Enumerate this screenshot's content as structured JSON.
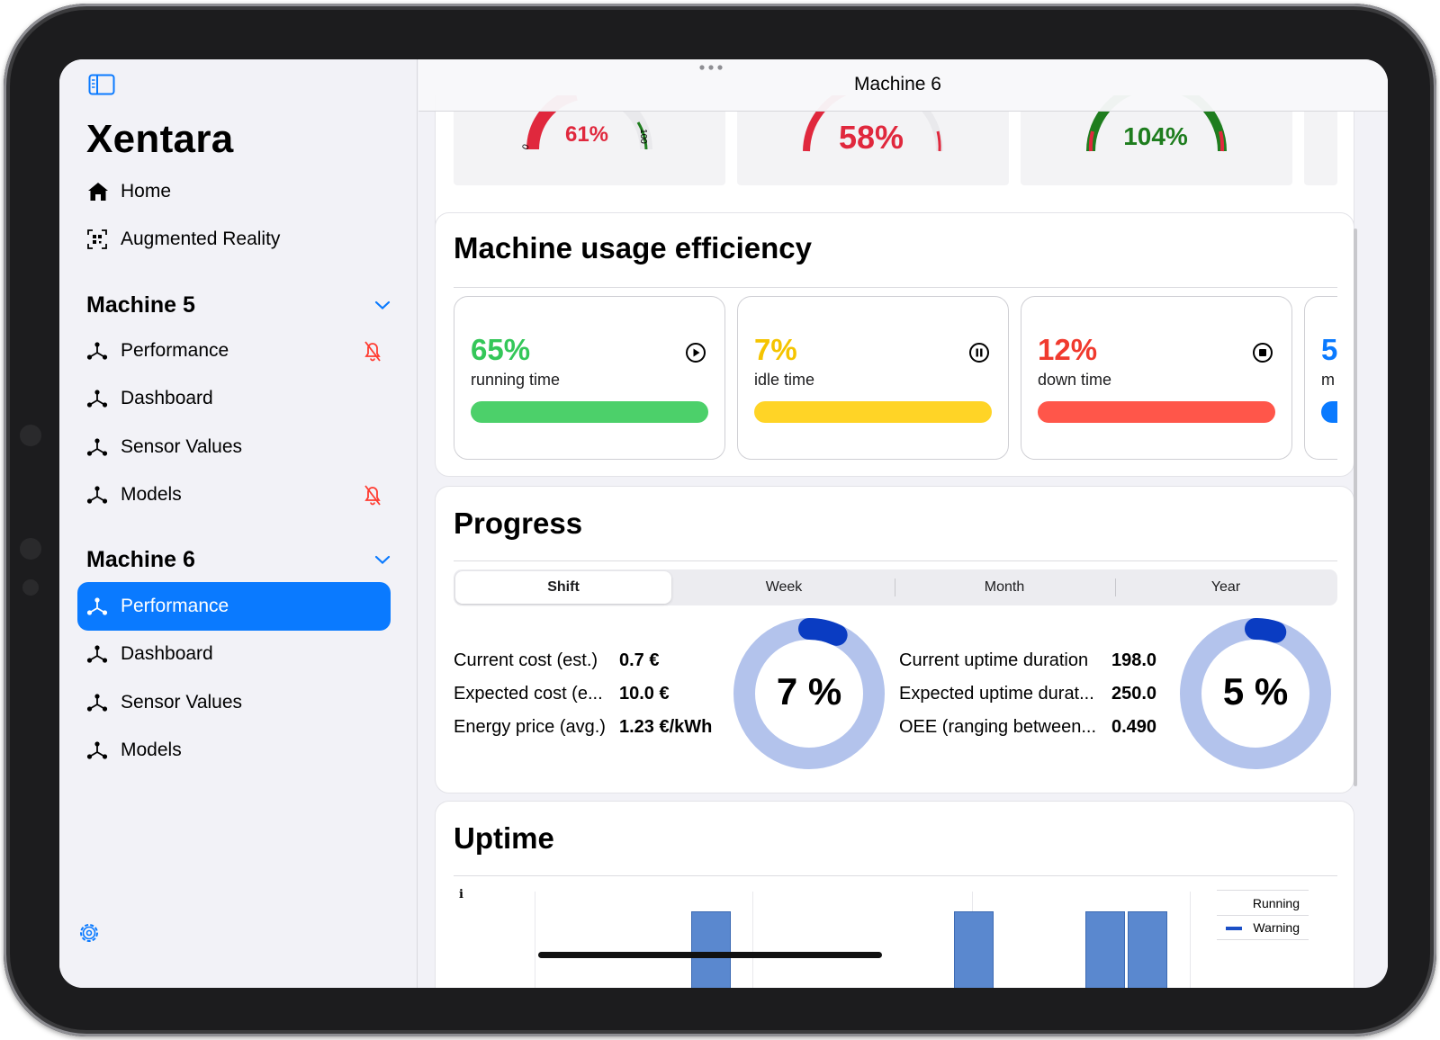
{
  "app": {
    "name": "Xentara",
    "window_title": "Machine 6"
  },
  "sidebar": {
    "top_items": [
      {
        "label": "Home",
        "icon": "house-icon"
      },
      {
        "label": "Augmented Reality",
        "icon": "qr-scan-icon"
      }
    ],
    "sections": [
      {
        "title": "Machine 5",
        "items": [
          {
            "label": "Performance",
            "icon": "network-icon",
            "badge": "bell-slash-icon"
          },
          {
            "label": "Dashboard",
            "icon": "network-icon"
          },
          {
            "label": "Sensor Values",
            "icon": "network-icon"
          },
          {
            "label": "Models",
            "icon": "network-icon",
            "badge": "bell-slash-icon"
          }
        ]
      },
      {
        "title": "Machine 6",
        "items": [
          {
            "label": "Performance",
            "icon": "network-icon",
            "selected": true
          },
          {
            "label": "Dashboard",
            "icon": "network-icon"
          },
          {
            "label": "Sensor Values",
            "icon": "network-icon"
          },
          {
            "label": "Models",
            "icon": "network-icon"
          }
        ]
      }
    ]
  },
  "gauges": [
    {
      "value_label": "61%",
      "value": 61,
      "color": "#e0283d",
      "tick_min": "0",
      "tick_max": "100"
    },
    {
      "value_label": "58%",
      "value": 58,
      "color": "#e0283d"
    },
    {
      "value_label": "104%",
      "value": 104,
      "color": "#1e7d1e"
    }
  ],
  "efficiency": {
    "title": "Machine usage efficiency",
    "tiles": [
      {
        "percent": "65%",
        "label": "running time",
        "color": "#34c759",
        "bar_color": "#4cd06a",
        "icon": "play-circle-icon"
      },
      {
        "percent": "7%",
        "label": "idle time",
        "color": "#f5c400",
        "bar_color": "#ffd426",
        "icon": "pause-circle-icon"
      },
      {
        "percent": "12%",
        "label": "down time",
        "color": "#f03a2e",
        "bar_color": "#ff564a",
        "icon": "stop-circle-icon"
      },
      {
        "percent": "5",
        "label": "m",
        "color": "#0a7aff",
        "bar_color": "#0a7aff"
      }
    ]
  },
  "progress": {
    "title": "Progress",
    "segments": [
      "Shift",
      "Week",
      "Month",
      "Year"
    ],
    "active_segment": "Shift",
    "cost": {
      "rows": [
        {
          "key": "Current cost (est.)",
          "value": "0.7 €"
        },
        {
          "key": "Expected cost (e...",
          "value": "10.0 €"
        },
        {
          "key": "Energy price (avg.)",
          "value": "1.23 €/kWh"
        }
      ],
      "donut_label": "7 %",
      "donut_value": 7
    },
    "uptime": {
      "rows": [
        {
          "key": "Current uptime duration",
          "value": "198.0"
        },
        {
          "key": "Expected uptime durat...",
          "value": "250.0"
        },
        {
          "key": "OEE (ranging between...",
          "value": "0.490"
        }
      ],
      "donut_label": "5 %",
      "donut_value": 5
    }
  },
  "uptime": {
    "title": "Uptime",
    "info_glyph": "i",
    "legend": [
      {
        "name": "Running"
      },
      {
        "name": "Warning",
        "color": "#1b4fc6"
      }
    ]
  },
  "colors": {
    "accent": "#0a7aff",
    "donut_track": "#b3c3ec",
    "donut_fill": "#0a3cc2"
  }
}
